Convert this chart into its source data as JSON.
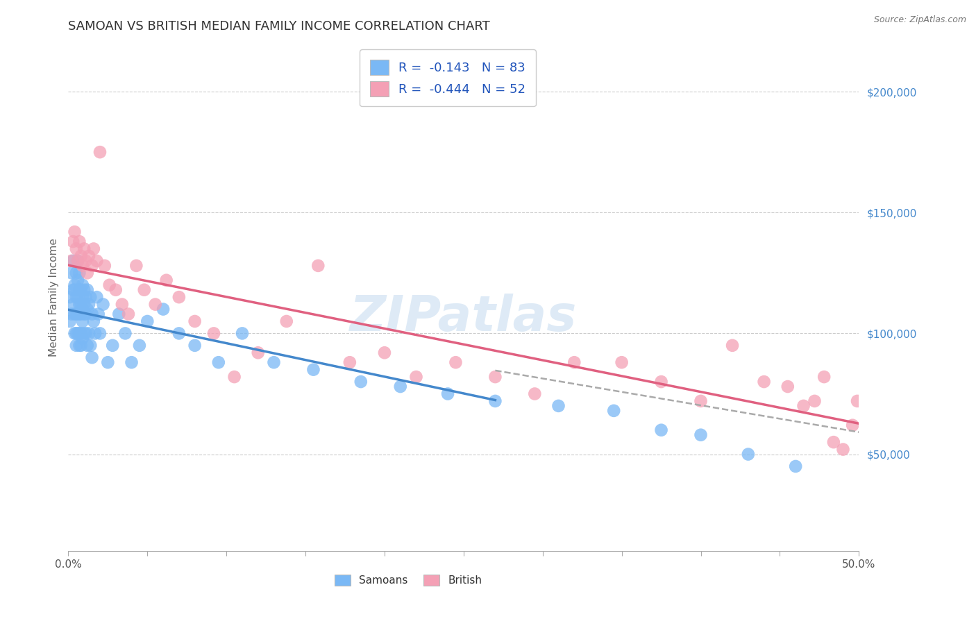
{
  "title": "SAMOAN VS BRITISH MEDIAN FAMILY INCOME CORRELATION CHART",
  "source": "Source: ZipAtlas.com",
  "ylabel": "Median Family Income",
  "y_ticks": [
    50000,
    100000,
    150000,
    200000
  ],
  "y_tick_labels": [
    "$50,000",
    "$100,000",
    "$150,000",
    "$200,000"
  ],
  "x_min": 0.0,
  "x_max": 0.5,
  "y_min": 10000,
  "y_max": 220000,
  "watermark": "ZIPatlas",
  "samoan_color": "#7ab8f5",
  "british_color": "#f4a0b5",
  "samoan_line_color": "#4488cc",
  "british_line_color": "#e06080",
  "combined_line_color": "#aaaaaa",
  "samoan_R": -0.143,
  "samoan_N": 83,
  "british_R": -0.444,
  "british_N": 52,
  "legend_text_color": "#2255bb",
  "samoan_x": [
    0.001,
    0.001,
    0.002,
    0.002,
    0.003,
    0.003,
    0.003,
    0.004,
    0.004,
    0.004,
    0.004,
    0.005,
    0.005,
    0.005,
    0.005,
    0.005,
    0.006,
    0.006,
    0.006,
    0.006,
    0.006,
    0.007,
    0.007,
    0.007,
    0.007,
    0.007,
    0.007,
    0.008,
    0.008,
    0.008,
    0.008,
    0.008,
    0.009,
    0.009,
    0.009,
    0.009,
    0.009,
    0.01,
    0.01,
    0.01,
    0.01,
    0.011,
    0.011,
    0.011,
    0.012,
    0.012,
    0.012,
    0.013,
    0.013,
    0.014,
    0.014,
    0.015,
    0.015,
    0.016,
    0.017,
    0.018,
    0.019,
    0.02,
    0.022,
    0.025,
    0.028,
    0.032,
    0.036,
    0.04,
    0.045,
    0.05,
    0.06,
    0.07,
    0.08,
    0.095,
    0.11,
    0.13,
    0.155,
    0.185,
    0.21,
    0.24,
    0.27,
    0.31,
    0.345,
    0.375,
    0.4,
    0.43,
    0.46
  ],
  "samoan_y": [
    115000,
    105000,
    125000,
    108000,
    130000,
    118000,
    112000,
    120000,
    108000,
    118000,
    100000,
    125000,
    115000,
    108000,
    100000,
    95000,
    130000,
    122000,
    115000,
    108000,
    100000,
    125000,
    118000,
    112000,
    108000,
    100000,
    95000,
    118000,
    112000,
    108000,
    100000,
    95000,
    120000,
    115000,
    110000,
    105000,
    98000,
    118000,
    112000,
    108000,
    100000,
    115000,
    108000,
    100000,
    118000,
    110000,
    95000,
    112000,
    100000,
    115000,
    95000,
    108000,
    90000,
    105000,
    100000,
    115000,
    108000,
    100000,
    112000,
    88000,
    95000,
    108000,
    100000,
    88000,
    95000,
    105000,
    110000,
    100000,
    95000,
    88000,
    100000,
    88000,
    85000,
    80000,
    78000,
    75000,
    72000,
    70000,
    68000,
    60000,
    58000,
    50000,
    45000
  ],
  "british_x": [
    0.002,
    0.003,
    0.004,
    0.005,
    0.006,
    0.007,
    0.008,
    0.009,
    0.01,
    0.011,
    0.012,
    0.013,
    0.015,
    0.016,
    0.018,
    0.02,
    0.023,
    0.026,
    0.03,
    0.034,
    0.038,
    0.043,
    0.048,
    0.055,
    0.062,
    0.07,
    0.08,
    0.092,
    0.105,
    0.12,
    0.138,
    0.158,
    0.178,
    0.2,
    0.22,
    0.245,
    0.27,
    0.295,
    0.32,
    0.35,
    0.375,
    0.4,
    0.42,
    0.44,
    0.455,
    0.465,
    0.472,
    0.478,
    0.484,
    0.49,
    0.496,
    0.499
  ],
  "british_y": [
    130000,
    138000,
    142000,
    135000,
    130000,
    138000,
    132000,
    128000,
    135000,
    130000,
    125000,
    132000,
    128000,
    135000,
    130000,
    175000,
    128000,
    120000,
    118000,
    112000,
    108000,
    128000,
    118000,
    112000,
    122000,
    115000,
    105000,
    100000,
    82000,
    92000,
    105000,
    128000,
    88000,
    92000,
    82000,
    88000,
    82000,
    75000,
    88000,
    88000,
    80000,
    72000,
    95000,
    80000,
    78000,
    70000,
    72000,
    82000,
    55000,
    52000,
    62000,
    72000
  ]
}
